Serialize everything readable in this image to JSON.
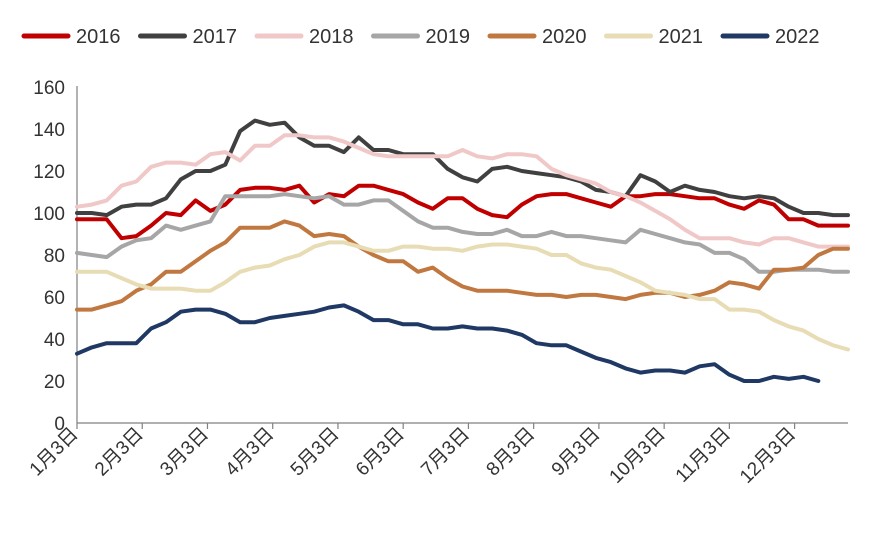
{
  "chart_data": {
    "type": "line",
    "ylim": [
      0,
      160
    ],
    "yticks": [
      0,
      20,
      40,
      60,
      80,
      100,
      120,
      140,
      160
    ],
    "x_tick_labels": [
      "1月3日",
      "2月3日",
      "3月3日",
      "4月3日",
      "5月3日",
      "6月3日",
      "7月3日",
      "8月3日",
      "9月3日",
      "10月3日",
      "11月3日",
      "12月3日"
    ],
    "x_week_range": [
      1,
      53
    ],
    "legend_position": "top",
    "grid": false,
    "series": [
      {
        "name": "2016",
        "color": "#c00000",
        "values": [
          97,
          97,
          97,
          88,
          89,
          94,
          100,
          99,
          106,
          101,
          104,
          111,
          112,
          112,
          111,
          113,
          105,
          109,
          108,
          113,
          113,
          111,
          109,
          105,
          102,
          107,
          107,
          102,
          99,
          98,
          104,
          108,
          109,
          109,
          107,
          105,
          103,
          108,
          108,
          109,
          109,
          108,
          107,
          107,
          104,
          102,
          106,
          104,
          97,
          97,
          94,
          94,
          94
        ]
      },
      {
        "name": "2017",
        "color": "#404040",
        "values": [
          100,
          100,
          99,
          103,
          104,
          104,
          107,
          116,
          120,
          120,
          123,
          139,
          144,
          142,
          143,
          136,
          132,
          132,
          129,
          136,
          130,
          130,
          128,
          128,
          128,
          121,
          117,
          115,
          121,
          122,
          120,
          119,
          118,
          117,
          115,
          111,
          110,
          108,
          118,
          115,
          110,
          113,
          111,
          110,
          108,
          107,
          108,
          107,
          103,
          100,
          100,
          99,
          99
        ]
      },
      {
        "name": "2018",
        "color": "#f0c8c8",
        "values": [
          103,
          104,
          106,
          113,
          115,
          122,
          124,
          124,
          123,
          128,
          129,
          125,
          132,
          132,
          137,
          137,
          136,
          136,
          134,
          131,
          128,
          127,
          127,
          127,
          127,
          127,
          130,
          127,
          126,
          128,
          128,
          127,
          121,
          118,
          116,
          114,
          110,
          108,
          105,
          101,
          97,
          92,
          88,
          88,
          88,
          86,
          85,
          88,
          88,
          86,
          84,
          84,
          84
        ]
      },
      {
        "name": "2019",
        "color": "#a6a6a6",
        "values": [
          81,
          80,
          79,
          84,
          87,
          88,
          94,
          92,
          94,
          96,
          108,
          108,
          108,
          108,
          109,
          108,
          107,
          108,
          104,
          104,
          106,
          106,
          101,
          96,
          93,
          93,
          91,
          90,
          90,
          92,
          89,
          89,
          91,
          89,
          89,
          88,
          87,
          86,
          92,
          90,
          88,
          86,
          85,
          81,
          81,
          78,
          72,
          72,
          73,
          73,
          73,
          72,
          72
        ]
      },
      {
        "name": "2020",
        "color": "#c07840",
        "values": [
          54,
          54,
          56,
          58,
          63,
          66,
          72,
          72,
          77,
          82,
          86,
          93,
          93,
          93,
          96,
          94,
          89,
          90,
          89,
          84,
          80,
          77,
          77,
          72,
          74,
          69,
          65,
          63,
          63,
          63,
          62,
          61,
          61,
          60,
          61,
          61,
          60,
          59,
          61,
          62,
          62,
          60,
          61,
          63,
          67,
          66,
          64,
          73,
          73,
          74,
          80,
          83,
          83
        ]
      },
      {
        "name": "2021",
        "color": "#e8dcb4",
        "values": [
          72,
          72,
          72,
          69,
          66,
          64,
          64,
          64,
          63,
          63,
          67,
          72,
          74,
          75,
          78,
          80,
          84,
          86,
          86,
          84,
          82,
          82,
          84,
          84,
          83,
          83,
          82,
          84,
          85,
          85,
          84,
          83,
          80,
          80,
          76,
          74,
          73,
          70,
          67,
          63,
          62,
          61,
          59,
          59,
          54,
          54,
          53,
          49,
          46,
          44,
          40,
          37,
          35
        ]
      },
      {
        "name": "2022",
        "color": "#203864",
        "values": [
          33,
          36,
          38,
          38,
          38,
          45,
          48,
          53,
          54,
          54,
          52,
          48,
          48,
          50,
          51,
          52,
          53,
          55,
          56,
          53,
          49,
          49,
          47,
          47,
          45,
          45,
          46,
          45,
          45,
          44,
          42,
          38,
          37,
          37,
          34,
          31,
          29,
          26,
          24,
          25,
          25,
          24,
          27,
          28,
          23,
          20,
          20,
          22,
          21,
          22,
          20,
          null,
          null
        ]
      }
    ]
  }
}
